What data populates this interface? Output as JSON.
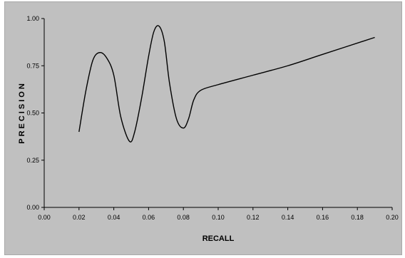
{
  "chart_data": {
    "type": "line",
    "title": "",
    "xlabel": "RECALL",
    "ylabel": "PRECISION",
    "xlim": [
      0,
      0.2
    ],
    "ylim": [
      0,
      1
    ],
    "x_ticks": [
      "0.00",
      "0.02",
      "0.04",
      "0.06",
      "0.08",
      "0.10",
      "0.12",
      "0.14",
      "0.16",
      "0.18",
      "0.20"
    ],
    "y_ticks": [
      "0.00",
      "0.25",
      "0.50",
      "0.75",
      "1.00"
    ],
    "grid": false,
    "legend": "none",
    "series": [
      {
        "x": [
          0.02,
          0.024,
          0.028,
          0.032,
          0.036,
          0.04,
          0.044,
          0.049,
          0.052,
          0.056,
          0.06,
          0.063,
          0.066,
          0.069,
          0.072,
          0.076,
          0.08,
          0.083,
          0.086,
          0.09,
          0.1,
          0.12,
          0.14,
          0.16,
          0.19
        ],
        "y": [
          0.4,
          0.62,
          0.78,
          0.82,
          0.79,
          0.7,
          0.48,
          0.35,
          0.4,
          0.58,
          0.8,
          0.93,
          0.96,
          0.88,
          0.66,
          0.47,
          0.42,
          0.47,
          0.57,
          0.62,
          0.65,
          0.7,
          0.75,
          0.81,
          0.9
        ],
        "color": "#000000"
      }
    ]
  }
}
